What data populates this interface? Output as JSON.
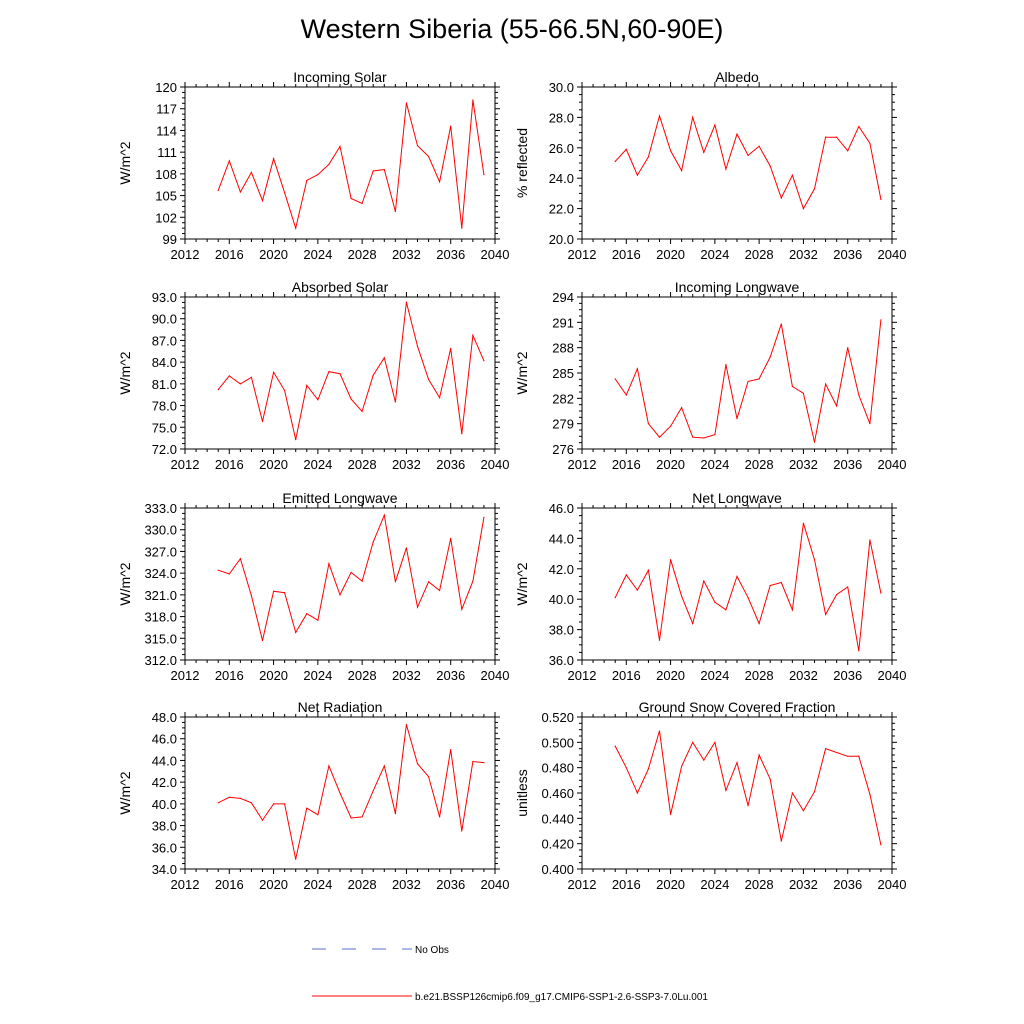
{
  "title": "Western Siberia (55-66.5N,60-90E)",
  "legend": {
    "obs_label": "No Obs",
    "obs_color": "#5a6fd0",
    "model_label": "b.e21.BSSP126cmip6.f09_g17.CMIP6-SSP1-2.6-SSP3-7.0Lu.001",
    "model_color": "#ff0000"
  },
  "chart_data": [
    {
      "type": "line",
      "title": "Incoming Solar",
      "ylabel": "W/m^2",
      "xlim": [
        2012,
        2040
      ],
      "xticks": [
        "2012",
        "2016",
        "2020",
        "2024",
        "2028",
        "2032",
        "2036",
        "2040"
      ],
      "ylim": [
        99,
        120
      ],
      "yticks": [
        "99",
        "102",
        "105",
        "108",
        "111",
        "114",
        "117",
        "120"
      ],
      "series": [
        {
          "x": [
            2015,
            2016,
            2017,
            2018,
            2019,
            2020,
            2021,
            2022,
            2023,
            2024,
            2025,
            2026,
            2027,
            2028,
            2029,
            2030,
            2031,
            2032,
            2033,
            2034,
            2035,
            2036,
            2037,
            2038,
            2039
          ],
          "values": [
            105.7,
            109.8,
            105.5,
            108.2,
            104.3,
            110.1,
            105.4,
            100.5,
            107.1,
            107.9,
            109.3,
            111.8,
            104.6,
            103.9,
            108.4,
            108.6,
            102.8,
            117.8,
            111.9,
            110.4,
            106.9,
            114.6,
            100.5,
            118.2,
            107.9
          ]
        }
      ]
    },
    {
      "type": "line",
      "title": "Albedo",
      "ylabel": "% reflected",
      "xlim": [
        2012,
        2040
      ],
      "xticks": [
        "2012",
        "2016",
        "2020",
        "2024",
        "2028",
        "2032",
        "2036",
        "2040"
      ],
      "ylim": [
        20,
        30
      ],
      "yticks": [
        "20.0",
        "22.0",
        "24.0",
        "26.0",
        "28.0",
        "30.0"
      ],
      "series": [
        {
          "x": [
            2015,
            2016,
            2017,
            2018,
            2019,
            2020,
            2021,
            2022,
            2023,
            2024,
            2025,
            2026,
            2027,
            2028,
            2029,
            2030,
            2031,
            2032,
            2033,
            2034,
            2035,
            2036,
            2037,
            2038,
            2039
          ],
          "values": [
            25.1,
            25.9,
            24.2,
            25.4,
            28.1,
            25.8,
            24.5,
            28.0,
            25.7,
            27.5,
            24.6,
            26.9,
            25.5,
            26.1,
            24.8,
            22.7,
            24.2,
            22.0,
            23.3,
            26.7,
            26.7,
            25.8,
            27.4,
            26.3,
            22.6
          ]
        }
      ]
    },
    {
      "type": "line",
      "title": "Absorbed Solar",
      "ylabel": "W/m^2",
      "xlim": [
        2012,
        2040
      ],
      "xticks": [
        "2012",
        "2016",
        "2020",
        "2024",
        "2028",
        "2032",
        "2036",
        "2040"
      ],
      "ylim": [
        72,
        93
      ],
      "yticks": [
        "72.0",
        "75.0",
        "78.0",
        "81.0",
        "84.0",
        "87.0",
        "90.0",
        "93.0"
      ],
      "series": [
        {
          "x": [
            2015,
            2016,
            2017,
            2018,
            2019,
            2020,
            2021,
            2022,
            2023,
            2024,
            2025,
            2026,
            2027,
            2028,
            2029,
            2030,
            2031,
            2032,
            2033,
            2034,
            2035,
            2036,
            2037,
            2038,
            2039
          ],
          "values": [
            80.2,
            82.1,
            81.0,
            81.9,
            75.8,
            82.6,
            80.1,
            73.3,
            80.8,
            78.8,
            82.7,
            82.4,
            78.9,
            77.2,
            82.2,
            84.6,
            78.5,
            92.3,
            86.2,
            81.6,
            79.1,
            85.9,
            74.1,
            87.7,
            84.2
          ]
        }
      ]
    },
    {
      "type": "line",
      "title": "Incoming Longwave",
      "ylabel": "W/m^2",
      "xlim": [
        2012,
        2040
      ],
      "xticks": [
        "2012",
        "2016",
        "2020",
        "2024",
        "2028",
        "2032",
        "2036",
        "2040"
      ],
      "ylim": [
        276,
        294
      ],
      "yticks": [
        "276",
        "279",
        "282",
        "285",
        "288",
        "291",
        "294"
      ],
      "series": [
        {
          "x": [
            2015,
            2016,
            2017,
            2018,
            2019,
            2020,
            2021,
            2022,
            2023,
            2024,
            2025,
            2026,
            2027,
            2028,
            2029,
            2030,
            2031,
            2032,
            2033,
            2034,
            2035,
            2036,
            2037,
            2038,
            2039
          ],
          "values": [
            284.3,
            282.4,
            285.5,
            279.0,
            277.4,
            278.7,
            280.9,
            277.4,
            277.3,
            277.7,
            286.0,
            279.6,
            284.0,
            284.3,
            286.9,
            290.8,
            283.4,
            282.6,
            276.8,
            283.7,
            281.1,
            288.0,
            282.4,
            279.0,
            291.3
          ]
        }
      ]
    },
    {
      "type": "line",
      "title": "Emitted Longwave",
      "ylabel": "W/m^2",
      "xlim": [
        2012,
        2040
      ],
      "xticks": [
        "2012",
        "2016",
        "2020",
        "2024",
        "2028",
        "2032",
        "2036",
        "2040"
      ],
      "ylim": [
        312,
        333
      ],
      "yticks": [
        "312.0",
        "315.0",
        "318.0",
        "321.0",
        "324.0",
        "327.0",
        "330.0",
        "333.0"
      ],
      "series": [
        {
          "x": [
            2015,
            2016,
            2017,
            2018,
            2019,
            2020,
            2021,
            2022,
            2023,
            2024,
            2025,
            2026,
            2027,
            2028,
            2029,
            2030,
            2031,
            2032,
            2033,
            2034,
            2035,
            2036,
            2037,
            2038,
            2039
          ],
          "values": [
            324.4,
            323.9,
            326.0,
            320.9,
            314.7,
            321.5,
            321.3,
            315.8,
            318.4,
            317.5,
            325.3,
            321.0,
            324.1,
            322.9,
            328.3,
            332.0,
            322.8,
            327.5,
            319.3,
            322.8,
            321.6,
            328.8,
            319.0,
            322.9,
            331.7
          ]
        }
      ]
    },
    {
      "type": "line",
      "title": "Net Longwave",
      "ylabel": "W/m^2",
      "xlim": [
        2012,
        2040
      ],
      "xticks": [
        "2012",
        "2016",
        "2020",
        "2024",
        "2028",
        "2032",
        "2036",
        "2040"
      ],
      "ylim": [
        36,
        46
      ],
      "yticks": [
        "36.0",
        "38.0",
        "40.0",
        "42.0",
        "44.0",
        "46.0"
      ],
      "series": [
        {
          "x": [
            2015,
            2016,
            2017,
            2018,
            2019,
            2020,
            2021,
            2022,
            2023,
            2024,
            2025,
            2026,
            2027,
            2028,
            2029,
            2030,
            2031,
            2032,
            2033,
            2034,
            2035,
            2036,
            2037,
            2038,
            2039
          ],
          "values": [
            40.1,
            41.6,
            40.6,
            41.9,
            37.3,
            42.6,
            40.2,
            38.4,
            41.2,
            39.8,
            39.3,
            41.5,
            40.1,
            38.4,
            40.9,
            41.1,
            39.3,
            45.0,
            42.6,
            39.0,
            40.3,
            40.8,
            36.6,
            43.9,
            40.4
          ]
        }
      ]
    },
    {
      "type": "line",
      "title": "Net Radiation",
      "ylabel": "W/m^2",
      "xlim": [
        2012,
        2040
      ],
      "xticks": [
        "2012",
        "2016",
        "2020",
        "2024",
        "2028",
        "2032",
        "2036",
        "2040"
      ],
      "ylim": [
        34,
        48
      ],
      "yticks": [
        "34.0",
        "36.0",
        "38.0",
        "40.0",
        "42.0",
        "44.0",
        "46.0",
        "48.0"
      ],
      "series": [
        {
          "x": [
            2015,
            2016,
            2017,
            2018,
            2019,
            2020,
            2021,
            2022,
            2023,
            2024,
            2025,
            2026,
            2027,
            2028,
            2029,
            2030,
            2031,
            2032,
            2033,
            2034,
            2035,
            2036,
            2037,
            2038,
            2039
          ],
          "values": [
            40.1,
            40.6,
            40.5,
            40.1,
            38.5,
            40.0,
            40.0,
            34.9,
            39.6,
            39.0,
            43.5,
            41.0,
            38.7,
            38.8,
            41.2,
            43.5,
            39.1,
            47.3,
            43.7,
            42.5,
            38.8,
            45.0,
            37.5,
            43.9,
            43.8
          ]
        }
      ]
    },
    {
      "type": "line",
      "title": "Ground Snow Covered Fraction",
      "ylabel": "unitless",
      "xlim": [
        2012,
        2040
      ],
      "xticks": [
        "2012",
        "2016",
        "2020",
        "2024",
        "2028",
        "2032",
        "2036",
        "2040"
      ],
      "ylim": [
        0.4,
        0.52
      ],
      "yticks": [
        "0.400",
        "0.420",
        "0.440",
        "0.460",
        "0.480",
        "0.500",
        "0.520"
      ],
      "series": [
        {
          "x": [
            2015,
            2016,
            2017,
            2018,
            2019,
            2020,
            2021,
            2022,
            2023,
            2024,
            2025,
            2026,
            2027,
            2028,
            2029,
            2030,
            2031,
            2032,
            2033,
            2034,
            2035,
            2036,
            2037,
            2038,
            2039
          ],
          "values": [
            0.497,
            0.48,
            0.46,
            0.479,
            0.509,
            0.443,
            0.481,
            0.5,
            0.486,
            0.5,
            0.462,
            0.484,
            0.45,
            0.49,
            0.471,
            0.422,
            0.46,
            0.446,
            0.461,
            0.495,
            0.492,
            0.489,
            0.489,
            0.459,
            0.419
          ]
        }
      ]
    }
  ]
}
